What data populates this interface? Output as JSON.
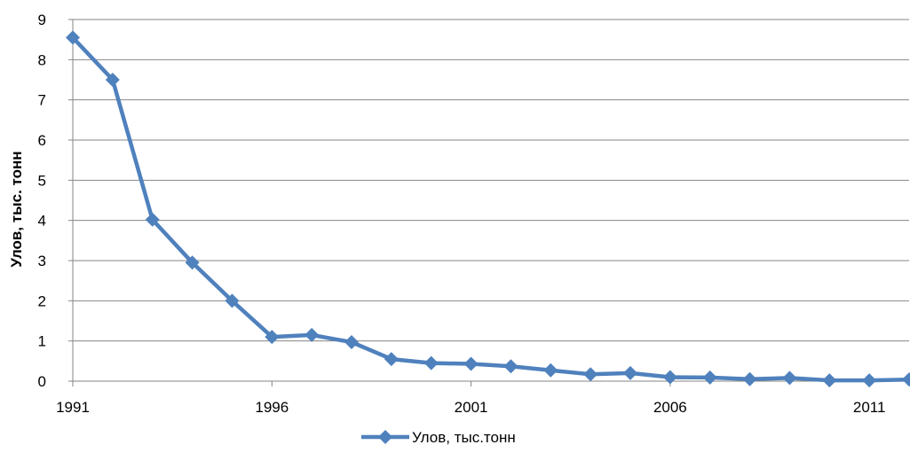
{
  "chart_data": {
    "type": "line",
    "ylabel": "Улов, тыс. тонн",
    "xlim": [
      1991,
      2012
    ],
    "ylim": [
      0,
      9
    ],
    "y_ticks": [
      0,
      1,
      2,
      3,
      4,
      5,
      6,
      7,
      8,
      9
    ],
    "x_ticks": [
      1991,
      1996,
      2001,
      2006,
      2011
    ],
    "grid": "horizontal",
    "legend_position": "bottom",
    "series": [
      {
        "name": "Улов, тыс.тонн",
        "color": "#4F81BD",
        "marker": "diamond",
        "x": [
          1991,
          1992,
          1993,
          1994,
          1995,
          1996,
          1997,
          1998,
          1999,
          2000,
          2001,
          2002,
          2003,
          2004,
          2005,
          2006,
          2007,
          2008,
          2009,
          2010,
          2011,
          2012
        ],
        "y": [
          8.55,
          7.5,
          4.02,
          2.95,
          2.0,
          1.1,
          1.15,
          0.97,
          0.55,
          0.45,
          0.43,
          0.37,
          0.27,
          0.17,
          0.2,
          0.1,
          0.09,
          0.05,
          0.08,
          0.02,
          0.02,
          0.04
        ]
      }
    ]
  }
}
